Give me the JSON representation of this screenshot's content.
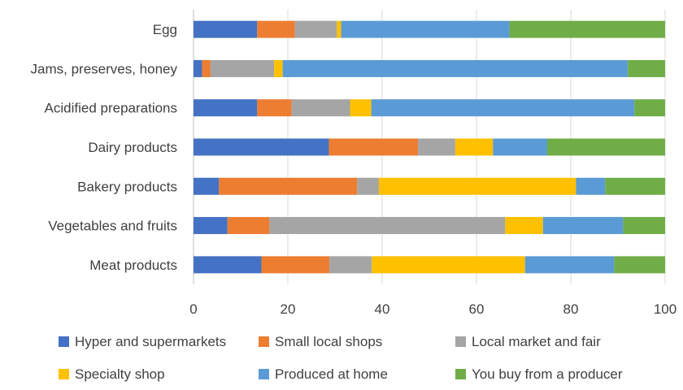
{
  "chart_data": {
    "type": "bar",
    "orientation": "horizontal",
    "stacked": true,
    "categories": [
      "Egg",
      "Jams, preserves, honey",
      "Acidified preparations",
      "Dairy products",
      "Bakery products",
      "Vegetables and fruits",
      "Meat products"
    ],
    "series": [
      {
        "name": "Hyper and supermarkets",
        "color": "#4472c4",
        "values": [
          13.5,
          1.8,
          13.5,
          28.7,
          5.4,
          7.2,
          14.4
        ]
      },
      {
        "name": "Small local shops",
        "color": "#ed7d31",
        "values": [
          8.0,
          1.8,
          7.3,
          18.9,
          29.3,
          8.9,
          14.4
        ]
      },
      {
        "name": "Local market and fair",
        "color": "#a5a5a5",
        "values": [
          8.9,
          13.5,
          12.4,
          7.9,
          4.6,
          50.0,
          9.0
        ]
      },
      {
        "name": "Specialty shop",
        "color": "#ffc000",
        "values": [
          0.9,
          1.8,
          4.5,
          8.0,
          41.8,
          8.0,
          32.5
        ]
      },
      {
        "name": "Produced at home",
        "color": "#5b9bd5",
        "values": [
          35.7,
          73.2,
          55.8,
          11.5,
          6.2,
          17.0,
          18.9
        ]
      },
      {
        "name": "You buy from a producer",
        "color": "#70ad47",
        "values": [
          33.0,
          7.9,
          6.5,
          25.0,
          12.7,
          8.9,
          10.8
        ]
      }
    ],
    "xlim": [
      0,
      100
    ],
    "xticks": [
      0,
      20,
      40,
      60,
      80,
      100
    ],
    "xlabel": "",
    "ylabel": "",
    "title": "",
    "grid": "vertical",
    "legend": "bottom"
  }
}
